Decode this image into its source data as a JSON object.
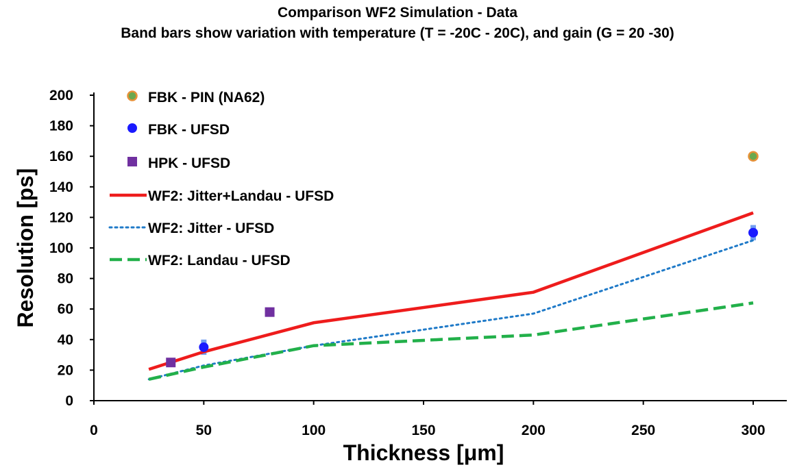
{
  "chart_data": {
    "type": "scatter",
    "title": "Comparison WF2 Simulation - Data",
    "subtitle": "Band bars show variation with temperature (T =  -20C - 20C), and gain (G = 20 -30)",
    "xlabel": "Thickness [μm]",
    "ylabel": "Resolution [ps]",
    "xlim": [
      0,
      300
    ],
    "ylim": [
      0,
      200
    ],
    "x_ticks": [
      "0",
      "50",
      "100",
      "150",
      "200",
      "250",
      "300"
    ],
    "y_ticks": [
      "0",
      "20",
      "40",
      "60",
      "80",
      "100",
      "120",
      "140",
      "160",
      "180",
      "200"
    ],
    "grid": false,
    "legend_position": "top-left",
    "series": [
      {
        "name": "FBK - PIN (NA62)",
        "kind": "points",
        "marker": "circle-outlined",
        "color": "#6aa84f",
        "edge_color": "#e69138",
        "x": [
          300
        ],
        "y": [
          160
        ]
      },
      {
        "name": "FBK - UFSD",
        "kind": "points",
        "marker": "circle",
        "color": "#1a1aff",
        "x": [
          50,
          300
        ],
        "y": [
          35,
          110
        ]
      },
      {
        "name": "HPK - UFSD",
        "kind": "points",
        "marker": "square",
        "color": "#7030a0",
        "x": [
          35,
          80
        ],
        "y": [
          25,
          58
        ]
      },
      {
        "name": "WF2: Jitter+Landau - UFSD",
        "kind": "line",
        "style": "solid",
        "color": "#ee1c1c",
        "x": [
          25,
          50,
          100,
          200,
          300
        ],
        "y": [
          20.5,
          32,
          51,
          71,
          123
        ]
      },
      {
        "name": "WF2: Jitter - UFSD",
        "kind": "line",
        "style": "dotted",
        "color": "#1f7ac8",
        "x": [
          25,
          50,
          100,
          200,
          300
        ],
        "y": [
          14,
          23,
          36,
          57,
          105
        ]
      },
      {
        "name": "WF2: Landau - UFSD",
        "kind": "line",
        "style": "dashed",
        "color": "#22b04a",
        "x": [
          25,
          50,
          100,
          200,
          300
        ],
        "y": [
          14,
          22,
          36,
          43,
          64
        ]
      }
    ],
    "band_bars": [
      {
        "x": 35,
        "low": 23,
        "high": 27,
        "color": "#5b8def"
      },
      {
        "x": 50,
        "low": 30,
        "high": 40,
        "color": "#5b8def"
      },
      {
        "x": 300,
        "low": 105,
        "high": 115,
        "color": "#5b8def"
      }
    ]
  }
}
